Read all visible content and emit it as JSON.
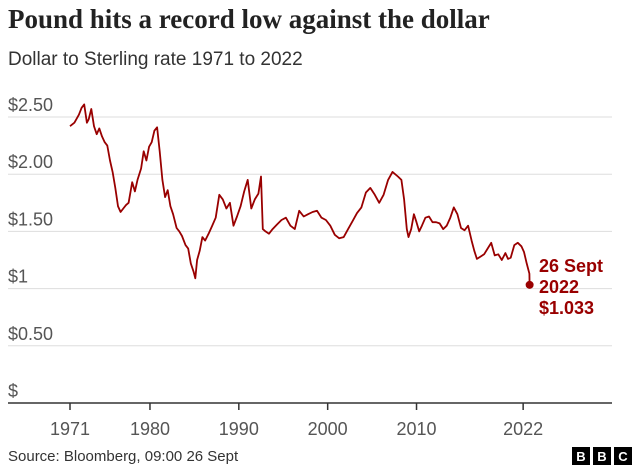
{
  "title": "Pound hits a record low against the dollar",
  "subtitle": "Dollar to Sterling rate 1971 to 2022",
  "source": "Source: Bloomberg, 09:00 26 Sept",
  "logo": {
    "letters": [
      "B",
      "B",
      "C"
    ],
    "alt": "BBC"
  },
  "colors": {
    "line": "#990000",
    "grid": "#dddddd",
    "axis": "#333333"
  },
  "chart_data": {
    "type": "line",
    "title": "Pound hits a record low against the dollar",
    "subtitle": "Dollar to Sterling rate 1971 to 2022",
    "xlabel": "",
    "ylabel": "",
    "xlim": [
      1971,
      2032
    ],
    "ylim": [
      0,
      2.5
    ],
    "grid": true,
    "y_ticks": [
      {
        "value": 2.5,
        "label": "$2.50"
      },
      {
        "value": 2.0,
        "label": "$2.00"
      },
      {
        "value": 1.5,
        "label": "$1.50"
      },
      {
        "value": 1.0,
        "label": "$1"
      },
      {
        "value": 0.5,
        "label": "$0.50"
      },
      {
        "value": 0.0,
        "label": "$"
      }
    ],
    "x_ticks": [
      {
        "value": 1971,
        "label": "1971"
      },
      {
        "value": 1980,
        "label": "1980"
      },
      {
        "value": 1990,
        "label": "1990"
      },
      {
        "value": 2000,
        "label": "2000"
      },
      {
        "value": 2010,
        "label": "2010"
      },
      {
        "value": 2022,
        "label": "2022"
      }
    ],
    "series": [
      {
        "x": [
          1971.0,
          1971.5,
          1972.0,
          1972.3,
          1972.6,
          1972.9,
          1973.1,
          1973.4,
          1973.7,
          1974.0,
          1974.3,
          1974.6,
          1974.9,
          1975.2,
          1975.5,
          1975.8,
          1976.1,
          1976.4,
          1976.7,
          1977.0,
          1977.3,
          1977.6,
          1978.0,
          1978.3,
          1978.6,
          1979.0,
          1979.3,
          1979.6,
          1979.9,
          1980.2,
          1980.5,
          1980.8,
          1981.1,
          1981.4,
          1981.7,
          1982.0,
          1982.3,
          1982.6,
          1983.0,
          1983.3,
          1983.6,
          1984.0,
          1984.3,
          1984.6,
          1984.9,
          1985.1,
          1985.3,
          1985.6,
          1985.9,
          1986.2,
          1986.6,
          1987.0,
          1987.4,
          1987.8,
          1988.2,
          1988.6,
          1989.0,
          1989.4,
          1989.8,
          1990.2,
          1990.6,
          1991.0,
          1991.4,
          1991.8,
          1992.2,
          1992.5,
          1992.7,
          1993.0,
          1993.4,
          1993.8,
          1994.3,
          1994.8,
          1995.3,
          1995.8,
          1996.3,
          1996.8,
          1997.3,
          1997.8,
          1998.3,
          1998.8,
          1999.3,
          1999.8,
          2000.3,
          2000.8,
          2001.3,
          2001.8,
          2002.3,
          2002.8,
          2003.3,
          2003.8,
          2004.3,
          2004.8,
          2005.3,
          2005.8,
          2006.3,
          2006.8,
          2007.3,
          2007.9,
          2008.3,
          2008.6,
          2008.9,
          2009.1,
          2009.4,
          2009.7,
          2010.0,
          2010.3,
          2010.6,
          2011.0,
          2011.4,
          2011.8,
          2012.2,
          2012.6,
          2013.0,
          2013.4,
          2013.8,
          2014.2,
          2014.6,
          2015.0,
          2015.4,
          2015.8,
          2016.2,
          2016.5,
          2016.8,
          2017.2,
          2017.6,
          2018.0,
          2018.4,
          2018.8,
          2019.2,
          2019.6,
          2020.0,
          2020.3,
          2020.6,
          2021.0,
          2021.4,
          2021.8,
          2022.1,
          2022.4,
          2022.7
        ],
        "values": [
          2.42,
          2.45,
          2.52,
          2.58,
          2.61,
          2.45,
          2.48,
          2.57,
          2.42,
          2.35,
          2.4,
          2.33,
          2.28,
          2.25,
          2.12,
          2.02,
          1.88,
          1.72,
          1.67,
          1.7,
          1.73,
          1.75,
          1.93,
          1.85,
          1.95,
          2.05,
          2.2,
          2.12,
          2.24,
          2.28,
          2.38,
          2.41,
          2.2,
          1.95,
          1.8,
          1.86,
          1.72,
          1.65,
          1.53,
          1.5,
          1.46,
          1.38,
          1.35,
          1.22,
          1.15,
          1.09,
          1.25,
          1.33,
          1.45,
          1.42,
          1.48,
          1.55,
          1.62,
          1.82,
          1.78,
          1.7,
          1.75,
          1.55,
          1.63,
          1.72,
          1.85,
          1.95,
          1.7,
          1.78,
          1.83,
          1.98,
          1.52,
          1.5,
          1.48,
          1.52,
          1.56,
          1.6,
          1.62,
          1.55,
          1.52,
          1.68,
          1.63,
          1.65,
          1.67,
          1.68,
          1.62,
          1.6,
          1.55,
          1.47,
          1.44,
          1.45,
          1.52,
          1.59,
          1.66,
          1.71,
          1.84,
          1.88,
          1.82,
          1.75,
          1.82,
          1.95,
          2.02,
          1.98,
          1.95,
          1.78,
          1.52,
          1.45,
          1.52,
          1.65,
          1.58,
          1.5,
          1.55,
          1.62,
          1.63,
          1.58,
          1.58,
          1.57,
          1.52,
          1.55,
          1.62,
          1.71,
          1.65,
          1.53,
          1.51,
          1.55,
          1.42,
          1.33,
          1.26,
          1.28,
          1.3,
          1.35,
          1.4,
          1.29,
          1.3,
          1.25,
          1.31,
          1.26,
          1.27,
          1.38,
          1.4,
          1.37,
          1.32,
          1.22,
          1.13
        ]
      }
    ],
    "final_point": {
      "x": 2022.73,
      "value": 1.033
    },
    "annotation": {
      "lines": [
        "26 Sept",
        "2022",
        "$1.033"
      ],
      "value": 1.033
    }
  }
}
